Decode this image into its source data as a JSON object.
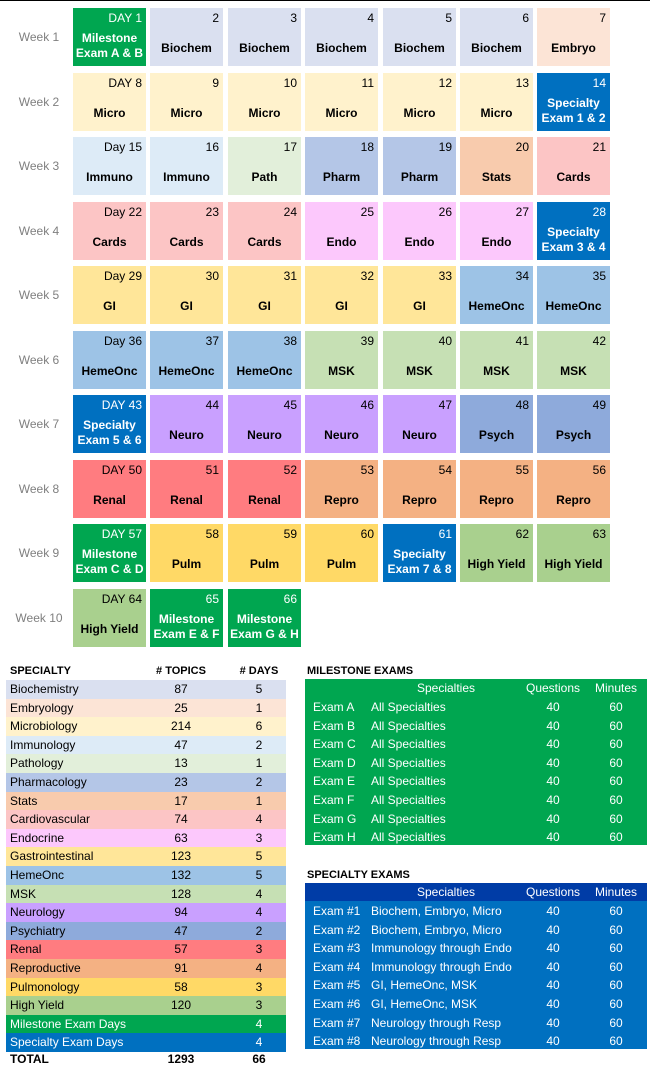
{
  "weeks": [
    "Week 1",
    "Week 2",
    "Week 3",
    "Week 4",
    "Week 5",
    "Week 6",
    "Week 7",
    "Week 8",
    "Week 9",
    "Week 10"
  ],
  "colors": {
    "milestone": "#00a650",
    "specialty": "#0070c0",
    "biochem": "#dae0f0",
    "embryo": "#fce4d6",
    "micro": "#fff2cc",
    "immuno": "#ddebf7",
    "path": "#e2efda",
    "pharm": "#b4c6e7",
    "stats": "#f8cbad",
    "cards": "#fcc5c5",
    "endo": "#fcc8fc",
    "gi": "#ffe699",
    "hemeonc": "#9dc3e6",
    "msk": "#c6e0b4",
    "neuro": "#c9a0ff",
    "psych": "#8eaadb",
    "renal": "#ff7c80",
    "repro": "#f4b183",
    "pulm": "#ffd966",
    "highyield": "#a9d08e"
  },
  "calendar": [
    [
      {
        "day": "DAY 1",
        "lines": [
          "Milestone",
          "Exam A & B"
        ],
        "c": "milestone"
      },
      {
        "day": "2",
        "lines": [
          "Biochem"
        ],
        "c": "biochem"
      },
      {
        "day": "3",
        "lines": [
          "Biochem"
        ],
        "c": "biochem"
      },
      {
        "day": "4",
        "lines": [
          "Biochem"
        ],
        "c": "biochem"
      },
      {
        "day": "5",
        "lines": [
          "Biochem"
        ],
        "c": "biochem"
      },
      {
        "day": "6",
        "lines": [
          "Biochem"
        ],
        "c": "biochem"
      },
      {
        "day": "7",
        "lines": [
          "Embryo"
        ],
        "c": "embryo"
      }
    ],
    [
      {
        "day": "DAY 8",
        "lines": [
          "Micro"
        ],
        "c": "micro"
      },
      {
        "day": "9",
        "lines": [
          "Micro"
        ],
        "c": "micro"
      },
      {
        "day": "10",
        "lines": [
          "Micro"
        ],
        "c": "micro"
      },
      {
        "day": "11",
        "lines": [
          "Micro"
        ],
        "c": "micro"
      },
      {
        "day": "12",
        "lines": [
          "Micro"
        ],
        "c": "micro"
      },
      {
        "day": "13",
        "lines": [
          "Micro"
        ],
        "c": "micro"
      },
      {
        "day": "14",
        "lines": [
          "Specialty",
          "Exam 1 & 2"
        ],
        "c": "specialty"
      }
    ],
    [
      {
        "day": "Day 15",
        "lines": [
          "Immuno"
        ],
        "c": "immuno"
      },
      {
        "day": "16",
        "lines": [
          "Immuno"
        ],
        "c": "immuno"
      },
      {
        "day": "17",
        "lines": [
          "Path"
        ],
        "c": "path"
      },
      {
        "day": "18",
        "lines": [
          "Pharm"
        ],
        "c": "pharm"
      },
      {
        "day": "19",
        "lines": [
          "Pharm"
        ],
        "c": "pharm"
      },
      {
        "day": "20",
        "lines": [
          "Stats"
        ],
        "c": "stats"
      },
      {
        "day": "21",
        "lines": [
          "Cards"
        ],
        "c": "cards"
      }
    ],
    [
      {
        "day": "Day 22",
        "lines": [
          "Cards"
        ],
        "c": "cards"
      },
      {
        "day": "23",
        "lines": [
          "Cards"
        ],
        "c": "cards"
      },
      {
        "day": "24",
        "lines": [
          "Cards"
        ],
        "c": "cards"
      },
      {
        "day": "25",
        "lines": [
          "Endo"
        ],
        "c": "endo"
      },
      {
        "day": "26",
        "lines": [
          "Endo"
        ],
        "c": "endo"
      },
      {
        "day": "27",
        "lines": [
          "Endo"
        ],
        "c": "endo"
      },
      {
        "day": "28",
        "lines": [
          "Specialty",
          "Exam 3 & 4"
        ],
        "c": "specialty"
      }
    ],
    [
      {
        "day": "Day 29",
        "lines": [
          "GI"
        ],
        "c": "gi"
      },
      {
        "day": "30",
        "lines": [
          "GI"
        ],
        "c": "gi"
      },
      {
        "day": "31",
        "lines": [
          "GI"
        ],
        "c": "gi"
      },
      {
        "day": "32",
        "lines": [
          "GI"
        ],
        "c": "gi"
      },
      {
        "day": "33",
        "lines": [
          "GI"
        ],
        "c": "gi"
      },
      {
        "day": "34",
        "lines": [
          "HemeOnc"
        ],
        "c": "hemeonc"
      },
      {
        "day": "35",
        "lines": [
          "HemeOnc"
        ],
        "c": "hemeonc"
      }
    ],
    [
      {
        "day": "Day 36",
        "lines": [
          "HemeOnc"
        ],
        "c": "hemeonc"
      },
      {
        "day": "37",
        "lines": [
          "HemeOnc"
        ],
        "c": "hemeonc"
      },
      {
        "day": "38",
        "lines": [
          "HemeOnc"
        ],
        "c": "hemeonc"
      },
      {
        "day": "39",
        "lines": [
          "MSK"
        ],
        "c": "msk"
      },
      {
        "day": "40",
        "lines": [
          "MSK"
        ],
        "c": "msk"
      },
      {
        "day": "41",
        "lines": [
          "MSK"
        ],
        "c": "msk"
      },
      {
        "day": "42",
        "lines": [
          "MSK"
        ],
        "c": "msk"
      }
    ],
    [
      {
        "day": "DAY 43",
        "lines": [
          "Specialty",
          "Exam 5 & 6"
        ],
        "c": "specialty"
      },
      {
        "day": "44",
        "lines": [
          "Neuro"
        ],
        "c": "neuro"
      },
      {
        "day": "45",
        "lines": [
          "Neuro"
        ],
        "c": "neuro"
      },
      {
        "day": "46",
        "lines": [
          "Neuro"
        ],
        "c": "neuro"
      },
      {
        "day": "47",
        "lines": [
          "Neuro"
        ],
        "c": "neuro"
      },
      {
        "day": "48",
        "lines": [
          "Psych"
        ],
        "c": "psych"
      },
      {
        "day": "49",
        "lines": [
          "Psych"
        ],
        "c": "psych"
      }
    ],
    [
      {
        "day": "DAY 50",
        "lines": [
          "Renal"
        ],
        "c": "renal"
      },
      {
        "day": "51",
        "lines": [
          "Renal"
        ],
        "c": "renal"
      },
      {
        "day": "52",
        "lines": [
          "Renal"
        ],
        "c": "renal"
      },
      {
        "day": "53",
        "lines": [
          "Repro"
        ],
        "c": "repro"
      },
      {
        "day": "54",
        "lines": [
          "Repro"
        ],
        "c": "repro"
      },
      {
        "day": "55",
        "lines": [
          "Repro"
        ],
        "c": "repro"
      },
      {
        "day": "56",
        "lines": [
          "Repro"
        ],
        "c": "repro"
      }
    ],
    [
      {
        "day": "DAY 57",
        "lines": [
          "Milestone",
          "Exam C & D"
        ],
        "c": "milestone"
      },
      {
        "day": "58",
        "lines": [
          "Pulm"
        ],
        "c": "pulm"
      },
      {
        "day": "59",
        "lines": [
          "Pulm"
        ],
        "c": "pulm"
      },
      {
        "day": "60",
        "lines": [
          "Pulm"
        ],
        "c": "pulm"
      },
      {
        "day": "61",
        "lines": [
          "Specialty",
          "Exam 7 & 8"
        ],
        "c": "specialty"
      },
      {
        "day": "62",
        "lines": [
          "High Yield"
        ],
        "c": "highyield"
      },
      {
        "day": "63",
        "lines": [
          "High Yield"
        ],
        "c": "highyield"
      }
    ],
    [
      {
        "day": "DAY 64",
        "lines": [
          "High Yield"
        ],
        "c": "highyield"
      },
      {
        "day": "65",
        "lines": [
          "Milestone",
          "Exam E & F"
        ],
        "c": "milestone"
      },
      {
        "day": "66",
        "lines": [
          "Milestone",
          "Exam G & H"
        ],
        "c": "milestone"
      }
    ]
  ],
  "specialty_table": {
    "headers": [
      "SPECIALTY",
      "# TOPICS",
      "# DAYS"
    ],
    "rows": [
      {
        "name": "Biochemistry",
        "topics": "87",
        "days": "5",
        "c": "biochem"
      },
      {
        "name": "Embryology",
        "topics": "25",
        "days": "1",
        "c": "embryo"
      },
      {
        "name": "Microbiology",
        "topics": "214",
        "days": "6",
        "c": "micro"
      },
      {
        "name": "Immunology",
        "topics": "47",
        "days": "2",
        "c": "immuno"
      },
      {
        "name": "Pathology",
        "topics": "13",
        "days": "1",
        "c": "path"
      },
      {
        "name": "Pharmacology",
        "topics": "23",
        "days": "2",
        "c": "pharm"
      },
      {
        "name": "Stats",
        "topics": "17",
        "days": "1",
        "c": "stats"
      },
      {
        "name": "Cardiovascular",
        "topics": "74",
        "days": "4",
        "c": "cards"
      },
      {
        "name": "Endocrine",
        "topics": "63",
        "days": "3",
        "c": "endo"
      },
      {
        "name": "Gastrointestinal",
        "topics": "123",
        "days": "5",
        "c": "gi"
      },
      {
        "name": "HemeOnc",
        "topics": "132",
        "days": "5",
        "c": "hemeonc"
      },
      {
        "name": "MSK",
        "topics": "128",
        "days": "4",
        "c": "msk"
      },
      {
        "name": "Neurology",
        "topics": "94",
        "days": "4",
        "c": "neuro"
      },
      {
        "name": "Psychiatry",
        "topics": "47",
        "days": "2",
        "c": "psych"
      },
      {
        "name": "Renal",
        "topics": "57",
        "days": "3",
        "c": "renal"
      },
      {
        "name": "Reproductive",
        "topics": "91",
        "days": "4",
        "c": "repro"
      },
      {
        "name": "Pulmonology",
        "topics": "58",
        "days": "3",
        "c": "pulm"
      },
      {
        "name": "High Yield",
        "topics": "120",
        "days": "3",
        "c": "highyield"
      },
      {
        "name": "Milestone Exam Days",
        "topics": "",
        "days": "4",
        "c": "milestone"
      },
      {
        "name": "Specialty Exam Days",
        "topics": "",
        "days": "4",
        "c": "specialty"
      }
    ],
    "total": {
      "label": "TOTAL",
      "topics": "1293",
      "days": "66"
    }
  },
  "milestone_exams": {
    "title": "MILESTONE EXAMS",
    "headers": [
      "Specialties",
      "Questions",
      "Minutes"
    ],
    "rows": [
      [
        "Exam A",
        "All Specialties",
        "40",
        "60"
      ],
      [
        "Exam B",
        "All Specialties",
        "40",
        "60"
      ],
      [
        "Exam C",
        "All Specialties",
        "40",
        "60"
      ],
      [
        "Exam D",
        "All Specialties",
        "40",
        "60"
      ],
      [
        "Exam E",
        "All Specialties",
        "40",
        "60"
      ],
      [
        "Exam F",
        "All Specialties",
        "40",
        "60"
      ],
      [
        "Exam G",
        "All Specialties",
        "40",
        "60"
      ],
      [
        "Exam H",
        "All Specialties",
        "40",
        "60"
      ]
    ]
  },
  "specialty_exams": {
    "title": "SPECIALTY EXAMS",
    "headers": [
      "Specialties",
      "Questions",
      "Minutes"
    ],
    "rows": [
      [
        "Exam #1",
        "Biochem, Embryo, Micro",
        "40",
        "60"
      ],
      [
        "Exam #2",
        "Biochem, Embryo, Micro",
        "40",
        "60"
      ],
      [
        "Exam #3",
        "Immunology through Endo",
        "40",
        "60"
      ],
      [
        "Exam #4",
        "Immunology through Endo",
        "40",
        "60"
      ],
      [
        "Exam #5",
        "GI, HemeOnc, MSK",
        "40",
        "60"
      ],
      [
        "Exam #6",
        "GI, HemeOnc, MSK",
        "40",
        "60"
      ],
      [
        "Exam #7",
        "Neurology through Resp",
        "40",
        "60"
      ],
      [
        "Exam #8",
        "Neurology through Resp",
        "40",
        "60"
      ]
    ]
  }
}
